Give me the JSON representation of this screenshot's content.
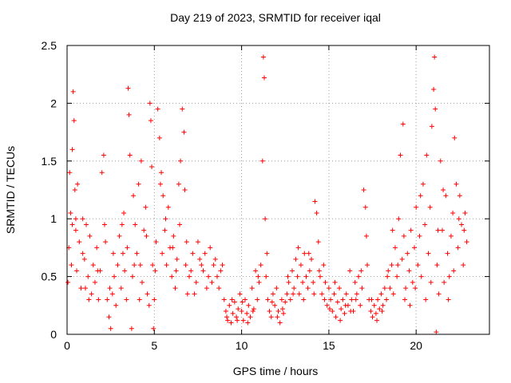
{
  "chart_data": {
    "type": "scatter",
    "title": "Day 219 of 2023, SRMTID for receiver iqal",
    "xlabel": "GPS time / hours",
    "ylabel": "SRMTID / TECUs",
    "xlim": [
      0,
      24.2
    ],
    "ylim": [
      0,
      2.5
    ],
    "xticks": [
      0,
      5,
      10,
      15,
      20
    ],
    "yticks": [
      0,
      0.5,
      1,
      1.5,
      2,
      2.5
    ],
    "xtick_labels": [
      "0",
      "5",
      "10",
      "15",
      "20"
    ],
    "ytick_labels": [
      "0",
      "0.5",
      "1",
      "1.5",
      "2",
      "2.5"
    ],
    "grid": true,
    "marker": "+",
    "color": "#ff0000",
    "series": [
      {
        "name": "SRMTID",
        "points": [
          [
            0.05,
            0.45
          ],
          [
            0.1,
            0.75
          ],
          [
            0.15,
            1.4
          ],
          [
            0.2,
            1.05
          ],
          [
            0.25,
            0.6
          ],
          [
            0.3,
            1.6
          ],
          [
            0.35,
            2.1
          ],
          [
            0.4,
            1.85
          ],
          [
            0.45,
            1.25
          ],
          [
            0.5,
            0.9
          ],
          [
            0.55,
            0.55
          ],
          [
            0.6,
            1.3
          ],
          [
            0.7,
            0.8
          ],
          [
            0.8,
            0.4
          ],
          [
            0.9,
            1.0
          ],
          [
            1.0,
            0.65
          ],
          [
            1.1,
            0.95
          ],
          [
            1.2,
            0.5
          ],
          [
            1.3,
            0.85
          ],
          [
            1.4,
            0.35
          ],
          [
            1.5,
            0.6
          ],
          [
            1.6,
            0.45
          ],
          [
            1.7,
            0.75
          ],
          [
            1.8,
            0.3
          ],
          [
            1.9,
            0.55
          ],
          [
            2.0,
            1.4
          ],
          [
            2.1,
            1.55
          ],
          [
            2.2,
            0.8
          ],
          [
            2.3,
            0.3
          ],
          [
            2.4,
            0.15
          ],
          [
            2.5,
            0.05
          ],
          [
            2.6,
            0.35
          ],
          [
            2.7,
            0.5
          ],
          [
            2.8,
            0.25
          ],
          [
            2.9,
            0.6
          ],
          [
            3.0,
            0.85
          ],
          [
            3.1,
            0.4
          ],
          [
            3.2,
            0.7
          ],
          [
            3.3,
            0.55
          ],
          [
            3.4,
            0.3
          ],
          [
            3.5,
            2.13
          ],
          [
            3.55,
            1.9
          ],
          [
            3.6,
            1.55
          ],
          [
            3.7,
            0.05
          ],
          [
            3.75,
            0.5
          ],
          [
            3.8,
            1.2
          ],
          [
            3.9,
            0.95
          ],
          [
            4.0,
            0.7
          ],
          [
            4.1,
            1.3
          ],
          [
            4.2,
            0.6
          ],
          [
            4.3,
            0.45
          ],
          [
            4.4,
            0.9
          ],
          [
            4.5,
            1.1
          ],
          [
            4.6,
            0.35
          ],
          [
            4.7,
            0.25
          ],
          [
            4.75,
            2.0
          ],
          [
            4.8,
            1.85
          ],
          [
            4.85,
            1.45
          ],
          [
            4.9,
            0.6
          ],
          [
            4.95,
            0.05
          ],
          [
            5.0,
            0.3
          ],
          [
            5.1,
            0.8
          ],
          [
            5.2,
            1.95
          ],
          [
            5.3,
            1.7
          ],
          [
            5.4,
            1.4
          ],
          [
            5.5,
            1.2
          ],
          [
            5.6,
            0.9
          ],
          [
            5.7,
            0.6
          ],
          [
            5.8,
            1.1
          ],
          [
            5.9,
            0.75
          ],
          [
            6.0,
            0.5
          ],
          [
            6.1,
            0.85
          ],
          [
            6.2,
            0.4
          ],
          [
            6.3,
            0.65
          ],
          [
            6.4,
            1.3
          ],
          [
            6.5,
            1.5
          ],
          [
            6.6,
            1.95
          ],
          [
            6.7,
            1.75
          ],
          [
            6.8,
            0.6
          ],
          [
            6.9,
            0.35
          ],
          [
            7.0,
            0.5
          ],
          [
            7.2,
            0.7
          ],
          [
            7.4,
            0.45
          ],
          [
            7.6,
            0.65
          ],
          [
            7.8,
            0.55
          ],
          [
            8.0,
            0.4
          ],
          [
            8.2,
            0.75
          ],
          [
            8.4,
            0.6
          ],
          [
            8.6,
            0.5
          ],
          [
            8.8,
            0.55
          ],
          [
            9.0,
            0.3
          ],
          [
            9.1,
            0.2
          ],
          [
            9.2,
            0.12
          ],
          [
            9.3,
            0.25
          ],
          [
            9.4,
            0.1
          ],
          [
            9.5,
            0.18
          ],
          [
            9.6,
            0.28
          ],
          [
            9.7,
            0.15
          ],
          [
            9.8,
            0.22
          ],
          [
            9.9,
            0.35
          ],
          [
            10.0,
            0.2
          ],
          [
            10.1,
            0.12
          ],
          [
            10.2,
            0.3
          ],
          [
            10.3,
            0.18
          ],
          [
            10.4,
            0.25
          ],
          [
            10.5,
            0.15
          ],
          [
            10.6,
            0.4
          ],
          [
            10.7,
            0.22
          ],
          [
            10.8,
            0.55
          ],
          [
            10.9,
            0.3
          ],
          [
            11.0,
            0.45
          ],
          [
            11.1,
            0.6
          ],
          [
            11.2,
            1.5
          ],
          [
            11.25,
            2.4
          ],
          [
            11.3,
            2.22
          ],
          [
            11.35,
            1.0
          ],
          [
            11.4,
            0.5
          ],
          [
            11.5,
            0.3
          ],
          [
            11.6,
            0.2
          ],
          [
            11.7,
            0.15
          ],
          [
            11.8,
            0.35
          ],
          [
            11.9,
            0.25
          ],
          [
            12.0,
            0.4
          ],
          [
            12.1,
            0.2
          ],
          [
            12.2,
            0.1
          ],
          [
            12.3,
            0.3
          ],
          [
            12.4,
            0.18
          ],
          [
            12.5,
            0.28
          ],
          [
            12.6,
            0.35
          ],
          [
            12.7,
            0.45
          ],
          [
            12.8,
            0.3
          ],
          [
            12.9,
            0.55
          ],
          [
            13.0,
            0.4
          ],
          [
            13.1,
            0.65
          ],
          [
            13.2,
            0.5
          ],
          [
            13.3,
            0.35
          ],
          [
            13.4,
            0.6
          ],
          [
            13.5,
            0.45
          ],
          [
            13.6,
            0.7
          ],
          [
            13.7,
            0.5
          ],
          [
            13.8,
            0.4
          ],
          [
            13.9,
            0.55
          ],
          [
            14.0,
            0.65
          ],
          [
            14.1,
            0.45
          ],
          [
            14.2,
            1.15
          ],
          [
            14.3,
            1.05
          ],
          [
            14.4,
            0.8
          ],
          [
            14.5,
            0.5
          ],
          [
            14.6,
            0.35
          ],
          [
            14.7,
            0.6
          ],
          [
            14.8,
            0.45
          ],
          [
            14.9,
            0.25
          ],
          [
            15.0,
            0.4
          ],
          [
            15.1,
            0.3
          ],
          [
            15.2,
            0.2
          ],
          [
            15.3,
            0.35
          ],
          [
            15.4,
            0.15
          ],
          [
            15.5,
            0.28
          ],
          [
            15.6,
            0.4
          ],
          [
            15.7,
            0.22
          ],
          [
            15.8,
            0.3
          ],
          [
            15.9,
            0.18
          ],
          [
            16.0,
            0.35
          ],
          [
            16.1,
            0.25
          ],
          [
            16.2,
            0.55
          ],
          [
            16.3,
            0.3
          ],
          [
            16.4,
            0.2
          ],
          [
            16.5,
            0.45
          ],
          [
            16.6,
            0.35
          ],
          [
            16.7,
            0.5
          ],
          [
            16.8,
            0.25
          ],
          [
            16.9,
            0.4
          ],
          [
            17.0,
            1.25
          ],
          [
            17.1,
            1.1
          ],
          [
            17.2,
            0.6
          ],
          [
            17.3,
            0.3
          ],
          [
            17.4,
            0.2
          ],
          [
            17.5,
            0.15
          ],
          [
            17.6,
            0.25
          ],
          [
            17.7,
            0.18
          ],
          [
            17.8,
            0.3
          ],
          [
            17.9,
            0.22
          ],
          [
            18.0,
            0.35
          ],
          [
            18.1,
            0.25
          ],
          [
            18.2,
            0.4
          ],
          [
            18.3,
            0.3
          ],
          [
            18.4,
            0.55
          ],
          [
            18.5,
            0.4
          ],
          [
            18.6,
            0.6
          ],
          [
            18.7,
            0.35
          ],
          [
            18.8,
            0.75
          ],
          [
            18.9,
            0.5
          ],
          [
            19.0,
            1.0
          ],
          [
            19.1,
            1.55
          ],
          [
            19.2,
            0.65
          ],
          [
            19.25,
            1.82
          ],
          [
            19.3,
            0.85
          ],
          [
            19.4,
            0.4
          ],
          [
            19.5,
            0.7
          ],
          [
            19.6,
            0.55
          ],
          [
            19.7,
            0.9
          ],
          [
            19.8,
            0.45
          ],
          [
            19.9,
            0.75
          ],
          [
            20.0,
            1.1
          ],
          [
            20.1,
            0.6
          ],
          [
            20.2,
            0.85
          ],
          [
            20.3,
            0.5
          ],
          [
            20.4,
            1.3
          ],
          [
            20.5,
            0.95
          ],
          [
            20.6,
            1.55
          ],
          [
            20.7,
            0.7
          ],
          [
            20.8,
            1.1
          ],
          [
            20.9,
            1.8
          ],
          [
            21.0,
            2.12
          ],
          [
            21.05,
            2.4
          ],
          [
            21.1,
            1.95
          ],
          [
            21.15,
            0.02
          ],
          [
            21.2,
            0.6
          ],
          [
            21.3,
            0.35
          ],
          [
            21.4,
            1.5
          ],
          [
            21.5,
            0.9
          ],
          [
            21.6,
            0.45
          ],
          [
            21.7,
            1.2
          ],
          [
            21.8,
            0.7
          ],
          [
            21.9,
            0.5
          ],
          [
            22.0,
            0.85
          ],
          [
            22.1,
            1.05
          ],
          [
            22.2,
            1.7
          ],
          [
            22.3,
            1.3
          ],
          [
            22.4,
            0.75
          ],
          [
            22.5,
            1.2
          ],
          [
            22.6,
            0.95
          ],
          [
            22.7,
            0.6
          ],
          [
            22.8,
            1.05
          ],
          [
            22.9,
            0.8
          ],
          [
            0.5,
            1.0
          ],
          [
            0.9,
            0.7
          ],
          [
            1.25,
            0.3
          ],
          [
            1.75,
            0.55
          ],
          [
            2.15,
            0.95
          ],
          [
            2.65,
            0.7
          ],
          [
            3.15,
            0.95
          ],
          [
            3.45,
            0.75
          ],
          [
            3.85,
            0.6
          ],
          [
            4.25,
            1.5
          ],
          [
            4.55,
            0.85
          ],
          [
            5.05,
            0.55
          ],
          [
            5.35,
            1.3
          ],
          [
            5.65,
            1.0
          ],
          [
            6.05,
            0.75
          ],
          [
            6.45,
            0.95
          ],
          [
            6.85,
            0.8
          ],
          [
            7.1,
            0.55
          ],
          [
            7.3,
            0.35
          ],
          [
            7.5,
            0.8
          ],
          [
            7.7,
            0.6
          ],
          [
            7.9,
            0.7
          ],
          [
            8.1,
            0.5
          ],
          [
            8.3,
            0.45
          ],
          [
            8.5,
            0.65
          ],
          [
            8.7,
            0.4
          ],
          [
            8.9,
            0.6
          ],
          [
            9.15,
            0.15
          ],
          [
            9.45,
            0.3
          ],
          [
            9.75,
            0.12
          ],
          [
            10.05,
            0.28
          ],
          [
            10.35,
            0.1
          ],
          [
            10.65,
            0.2
          ],
          [
            10.95,
            0.5
          ],
          [
            11.45,
            0.7
          ],
          [
            11.75,
            0.28
          ],
          [
            12.05,
            0.15
          ],
          [
            12.35,
            0.22
          ],
          [
            12.65,
            0.5
          ],
          [
            12.95,
            0.35
          ],
          [
            13.25,
            0.75
          ],
          [
            13.55,
            0.3
          ],
          [
            13.85,
            0.7
          ],
          [
            14.15,
            0.35
          ],
          [
            14.45,
            0.55
          ],
          [
            14.75,
            0.3
          ],
          [
            15.05,
            0.22
          ],
          [
            15.35,
            0.45
          ],
          [
            15.65,
            0.12
          ],
          [
            15.95,
            0.25
          ],
          [
            16.25,
            0.2
          ],
          [
            16.55,
            0.3
          ],
          [
            16.85,
            0.55
          ],
          [
            17.15,
            0.85
          ],
          [
            17.45,
            0.3
          ],
          [
            17.75,
            0.12
          ],
          [
            18.05,
            0.2
          ],
          [
            18.35,
            0.5
          ],
          [
            18.65,
            0.9
          ],
          [
            18.95,
            0.6
          ],
          [
            19.35,
            0.3
          ],
          [
            19.65,
            0.25
          ],
          [
            19.95,
            0.4
          ],
          [
            20.25,
            1.2
          ],
          [
            20.55,
            0.3
          ],
          [
            20.85,
            0.45
          ],
          [
            21.25,
            0.9
          ],
          [
            21.55,
            1.25
          ],
          [
            21.85,
            0.3
          ],
          [
            22.15,
            0.55
          ],
          [
            22.45,
            1.0
          ],
          [
            22.75,
            0.9
          ],
          [
            0.3,
            0.95
          ],
          [
            1.05,
            0.4
          ],
          [
            2.45,
            0.4
          ],
          [
            3.25,
            1.05
          ],
          [
            4.15,
            0.3
          ],
          [
            5.45,
            0.7
          ],
          [
            6.25,
            0.55
          ],
          [
            6.75,
            1.25
          ]
        ]
      }
    ]
  }
}
